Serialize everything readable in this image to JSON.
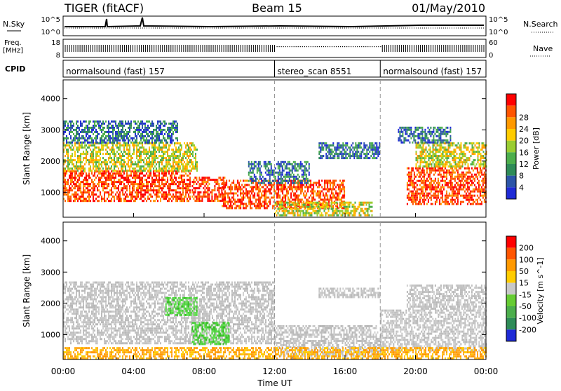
{
  "header": {
    "radar": "TIGER (fitACF)",
    "beam": "Beam 15",
    "date": "01/May/2010"
  },
  "top_panels": {
    "nsky_label": "N.Sky",
    "nsearch_label": "N.Search",
    "freq_label_1": "Freq.",
    "freq_label_2": "[MHz]",
    "nave_label": "Nave",
    "cpid_label": "CPID",
    "noise_ticks_left": [
      "10^5",
      "10^0"
    ],
    "noise_ticks_right": [
      "10^5",
      "10^0"
    ],
    "freq_ticks": [
      "18",
      "8"
    ],
    "nave_ticks": [
      "60",
      "0"
    ],
    "cpid_segments": [
      {
        "label": "normalsound (fast) 157",
        "start_hour": 0,
        "end_hour": 12
      },
      {
        "label": "stereo_scan 8551",
        "start_hour": 12,
        "end_hour": 18
      },
      {
        "label": "normalsound (fast) 157",
        "start_hour": 18,
        "end_hour": 24
      }
    ]
  },
  "chart_data": [
    {
      "type": "heatmap",
      "name": "power",
      "ylabel": "Slant Range [km]",
      "xlabel": "Time UT",
      "xlim": [
        0,
        24
      ],
      "ylim": [
        200,
        4600
      ],
      "x_ticks": [
        "00:00",
        "04:00",
        "08:00",
        "12:00",
        "16:00",
        "20:00",
        "00:00"
      ],
      "y_ticks": [
        1000,
        2000,
        3000,
        4000
      ],
      "colorbar_label": "Power [dB]",
      "colorbar_ticks": [
        4,
        8,
        12,
        16,
        20,
        24,
        28
      ],
      "colorbar_colors": [
        "#1f2bd6",
        "#2c55a8",
        "#2e8b57",
        "#4cae4c",
        "#9acd32",
        "#ffcc00",
        "#ff9900",
        "#ff5500",
        "#ff0000"
      ],
      "regions": [
        {
          "t0": 0.0,
          "t1": 7.2,
          "r0": 700,
          "r1": 1700,
          "level": "high"
        },
        {
          "t0": 0.0,
          "t1": 7.6,
          "r0": 1700,
          "r1": 2600,
          "level": "mid"
        },
        {
          "t0": 0.0,
          "t1": 6.5,
          "r0": 2600,
          "r1": 3300,
          "level": "low"
        },
        {
          "t0": 7.3,
          "t1": 9.2,
          "r0": 700,
          "r1": 1500,
          "level": "high"
        },
        {
          "t0": 9.0,
          "t1": 16.0,
          "r0": 500,
          "r1": 1400,
          "level": "high"
        },
        {
          "t0": 12.0,
          "t1": 17.5,
          "r0": 250,
          "r1": 700,
          "level": "mid"
        },
        {
          "t0": 14.5,
          "t1": 18.0,
          "r0": 2100,
          "r1": 2600,
          "level": "low"
        },
        {
          "t0": 10.5,
          "t1": 14.0,
          "r0": 1300,
          "r1": 2000,
          "level": "low"
        },
        {
          "t0": 19.5,
          "t1": 24.0,
          "r0": 600,
          "r1": 1800,
          "level": "high"
        },
        {
          "t0": 20.0,
          "t1": 24.0,
          "r0": 1800,
          "r1": 2600,
          "level": "mid"
        },
        {
          "t0": 19.0,
          "t1": 22.0,
          "r0": 2600,
          "r1": 3100,
          "level": "low"
        }
      ]
    },
    {
      "type": "heatmap",
      "name": "velocity",
      "ylabel": "Slant Range [km]",
      "xlabel": "Time UT",
      "xlim": [
        0,
        24
      ],
      "ylim": [
        200,
        4600
      ],
      "x_ticks": [
        "00:00",
        "04:00",
        "08:00",
        "12:00",
        "16:00",
        "20:00",
        "00:00"
      ],
      "y_ticks": [
        1000,
        2000,
        3000,
        4000
      ],
      "colorbar_label": "Velocity [m s^-1]",
      "colorbar_ticks": [
        200,
        100,
        50,
        15,
        -15,
        -50,
        -100,
        -200
      ],
      "colorbar_colors": [
        "#1f2bd6",
        "#2e8b57",
        "#4cae4c",
        "#66cc33",
        "#c8c8c8",
        "#ffcc00",
        "#ff9900",
        "#ff5500",
        "#ff0000"
      ],
      "regions": [
        {
          "t0": 0.0,
          "t1": 12.0,
          "r0": 700,
          "r1": 1900,
          "level": "gray"
        },
        {
          "t0": 0.0,
          "t1": 12.0,
          "r0": 1900,
          "r1": 2700,
          "level": "gray"
        },
        {
          "t0": 12.0,
          "t1": 18.0,
          "r0": 300,
          "r1": 1300,
          "level": "gray"
        },
        {
          "t0": 14.5,
          "t1": 18.0,
          "r0": 2200,
          "r1": 2500,
          "level": "gray"
        },
        {
          "t0": 18.0,
          "t1": 24.0,
          "r0": 500,
          "r1": 1800,
          "level": "gray"
        },
        {
          "t0": 19.5,
          "t1": 24.0,
          "r0": 1800,
          "r1": 2600,
          "level": "gray"
        },
        {
          "t0": 7.3,
          "t1": 9.4,
          "r0": 700,
          "r1": 1400,
          "level": "green"
        },
        {
          "t0": 5.8,
          "t1": 7.6,
          "r0": 1600,
          "r1": 2200,
          "level": "green"
        },
        {
          "t0": 0.0,
          "t1": 24.0,
          "r0": 250,
          "r1": 600,
          "level": "orange"
        }
      ]
    }
  ]
}
